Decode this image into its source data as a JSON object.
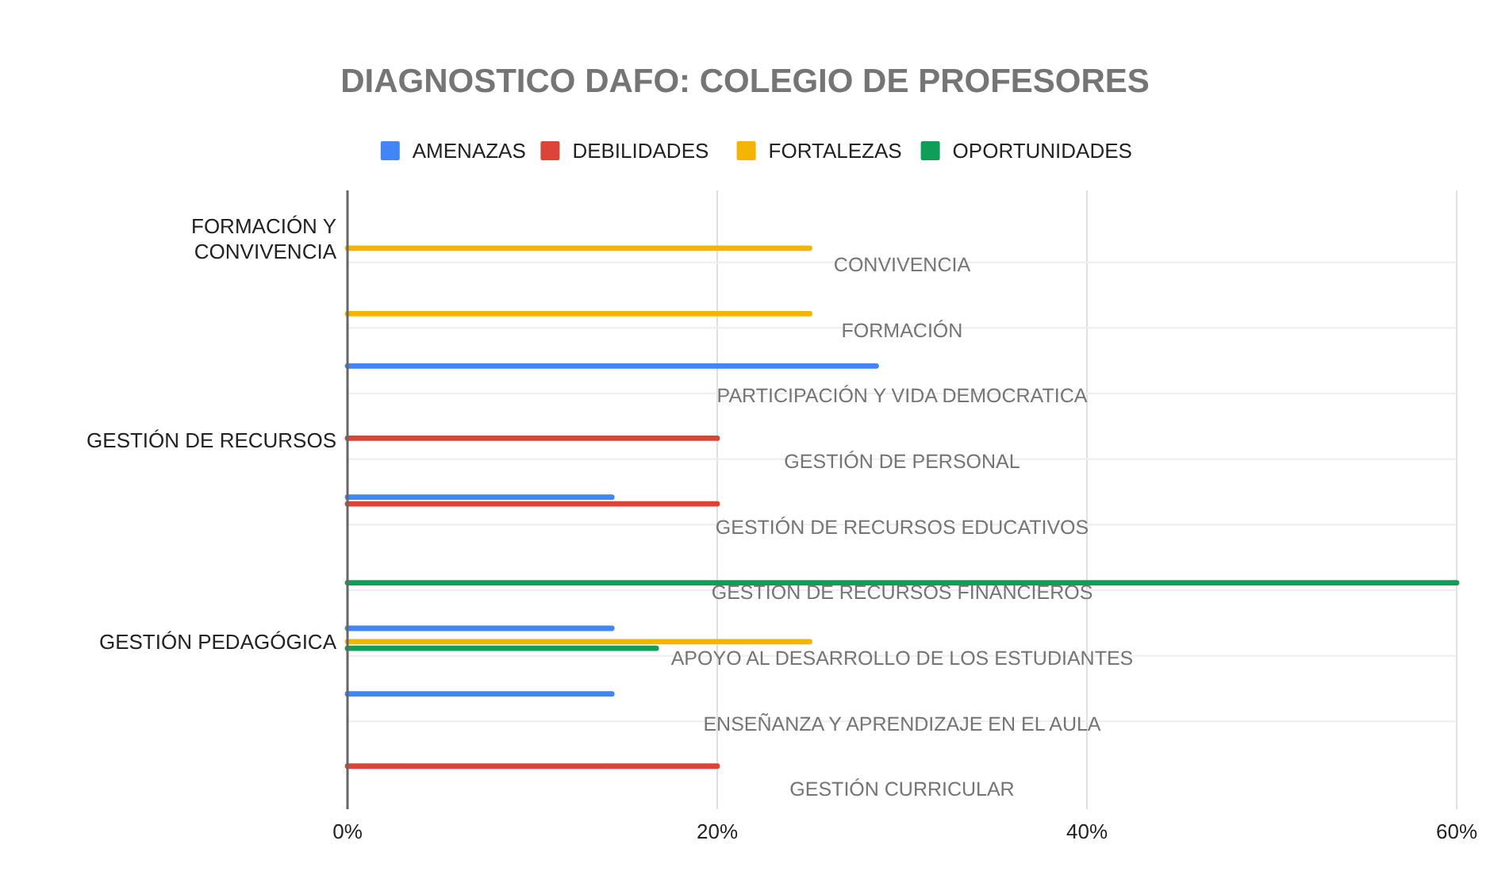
{
  "chart_data": {
    "type": "bar",
    "orientation": "horizontal",
    "title": "DIAGNOSTICO DAFO: COLEGIO DE PROFESORES",
    "categories": [
      "CONVIVENCIA",
      "FORMACIÓN",
      "PARTICIPACIÓN Y VIDA DEMOCRATICA",
      "GESTIÓN DE PERSONAL",
      "GESTIÓN DE RECURSOS EDUCATIVOS",
      "GESTIÓN DE RECURSOS FINANCIEROS",
      "APOYO AL DESARROLLO DE LOS ESTUDIANTES",
      "ENSEÑANZA Y APRENDIZAJE EN EL AULA",
      "GESTIÓN CURRICULAR"
    ],
    "series": [
      {
        "name": "AMENAZAS",
        "color": "#4285f4",
        "values": [
          null,
          null,
          28.6,
          null,
          14.3,
          null,
          14.3,
          14.3,
          null
        ]
      },
      {
        "name": "DEBILIDADES",
        "color": "#db4437",
        "values": [
          null,
          null,
          null,
          20,
          20,
          null,
          null,
          null,
          20
        ]
      },
      {
        "name": "FORTALEZAS",
        "color": "#f4b400",
        "values": [
          25,
          25,
          null,
          null,
          null,
          null,
          25,
          null,
          null
        ]
      },
      {
        "name": "OPORTUNIDADES",
        "color": "#0f9d58",
        "values": [
          null,
          null,
          null,
          null,
          null,
          60,
          16.7,
          null,
          null
        ]
      }
    ],
    "annotations": [
      "FORMACIÓN Y CONVIVENCIA",
      "GESTIÓN DE RECURSOS",
      "GESTIÓN PEDAGÓGICA"
    ],
    "xlim": [
      0,
      60
    ],
    "xticks": [
      {
        "value": 0,
        "label": "0%"
      },
      {
        "value": 20,
        "label": "20%"
      },
      {
        "value": 40,
        "label": "40%"
      },
      {
        "value": 60,
        "label": "60%"
      }
    ],
    "grid": true,
    "legend": "top"
  }
}
